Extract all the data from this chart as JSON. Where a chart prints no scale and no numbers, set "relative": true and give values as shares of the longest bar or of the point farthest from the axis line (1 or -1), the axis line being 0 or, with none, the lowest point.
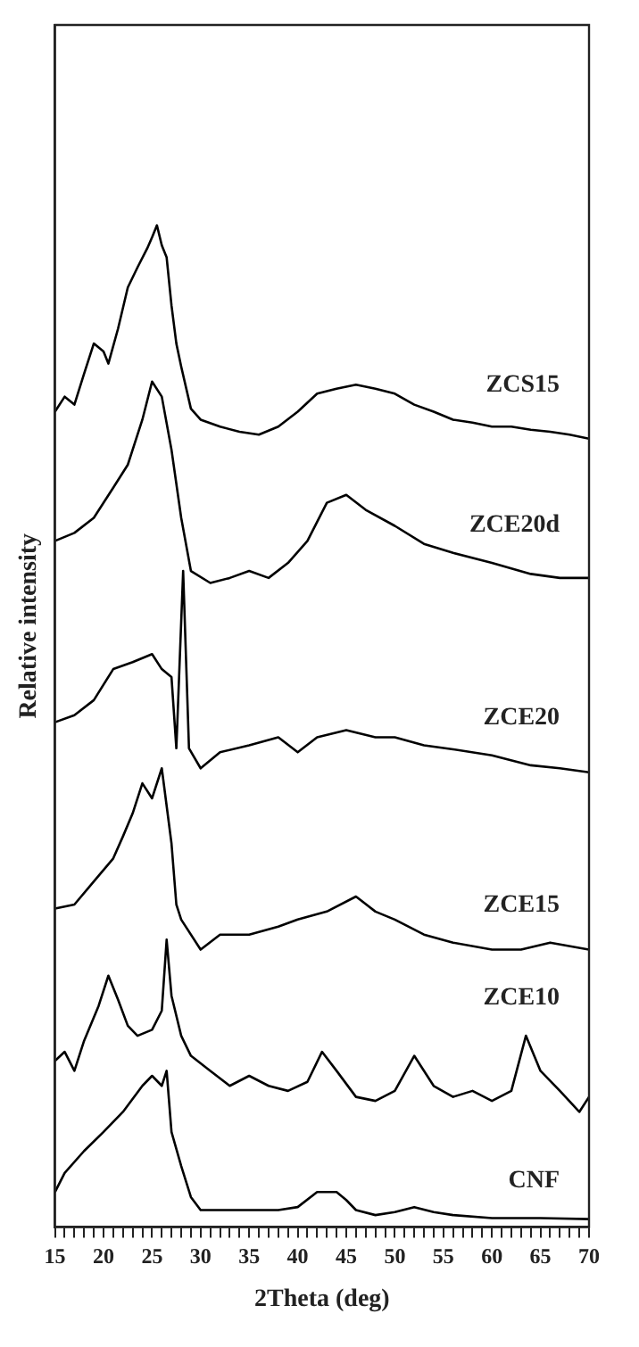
{
  "chart_data": {
    "type": "line",
    "relative": true,
    "xlabel": "2Theta (deg)",
    "ylabel": "Relative intensity",
    "xlim": [
      15,
      70
    ],
    "xticks": [
      15,
      {
        "value": 16,
        "label": null
      },
      {
        "value": 17,
        "label": null
      },
      {
        "value": 18,
        "label": null
      },
      {
        "value": 19,
        "label": null
      },
      20,
      {
        "value": 21,
        "label": null
      },
      {
        "value": 22,
        "label": null
      },
      {
        "value": 23,
        "label": null
      },
      {
        "value": 24,
        "label": null
      },
      25,
      {
        "value": 26,
        "label": null
      },
      {
        "value": 27,
        "label": null
      },
      {
        "value": 28,
        "label": null
      },
      {
        "value": 29,
        "label": null
      },
      30,
      {
        "value": 31,
        "label": null
      },
      {
        "value": 32,
        "label": null
      },
      {
        "value": 33,
        "label": null
      },
      {
        "value": 34,
        "label": null
      },
      35,
      {
        "value": 36,
        "label": null
      },
      {
        "value": 37,
        "label": null
      },
      {
        "value": 38,
        "label": null
      },
      {
        "value": 39,
        "label": null
      },
      40,
      {
        "value": 41,
        "label": null
      },
      {
        "value": 42,
        "label": null
      },
      {
        "value": 43,
        "label": null
      },
      {
        "value": 44,
        "label": null
      },
      45,
      {
        "value": 46,
        "label": null
      },
      {
        "value": 47,
        "label": null
      },
      {
        "value": 48,
        "label": null
      },
      {
        "value": 49,
        "label": null
      },
      50,
      {
        "value": 51,
        "label": null
      },
      {
        "value": 52,
        "label": null
      },
      {
        "value": 53,
        "label": null
      },
      {
        "value": 54,
        "label": null
      },
      55,
      {
        "value": 56,
        "label": null
      },
      {
        "value": 57,
        "label": null
      },
      {
        "value": 58,
        "label": null
      },
      {
        "value": 59,
        "label": null
      },
      60,
      {
        "value": 61,
        "label": null
      },
      {
        "value": 62,
        "label": null
      },
      {
        "value": 63,
        "label": null
      },
      {
        "value": 64,
        "label": null
      },
      65,
      {
        "value": 66,
        "label": null
      },
      {
        "value": 67,
        "label": null
      },
      {
        "value": 68,
        "label": null
      },
      {
        "value": 69,
        "label": null
      },
      70
    ],
    "tick_labels": "x",
    "grid": false,
    "legend": false,
    "marker": "none",
    "line_style": "solid",
    "series": [
      {
        "name": "ZCS15",
        "color": "#000000",
        "x": [
          15,
          16,
          17,
          18,
          19,
          20,
          20.5,
          21.5,
          22.5,
          23.5,
          24.5,
          25,
          25.5,
          26,
          26.5,
          27,
          27.5,
          28,
          29,
          30,
          32,
          34,
          36,
          38,
          40,
          42,
          44,
          46,
          48,
          50,
          52,
          54,
          56,
          58,
          60,
          62,
          64,
          66,
          68,
          70
        ],
        "values": [
          0.814,
          0.829,
          0.821,
          0.852,
          0.882,
          0.874,
          0.862,
          0.897,
          0.938,
          0.958,
          0.977,
          0.988,
          1.0,
          0.98,
          0.968,
          0.92,
          0.882,
          0.859,
          0.817,
          0.806,
          0.799,
          0.794,
          0.791,
          0.799,
          0.814,
          0.832,
          0.837,
          0.841,
          0.837,
          0.832,
          0.821,
          0.814,
          0.806,
          0.803,
          0.799,
          0.799,
          0.796,
          0.794,
          0.791,
          0.787
        ]
      },
      {
        "name": "ZCE20d",
        "color": "#000000",
        "x": [
          15,
          17,
          19,
          21,
          22.5,
          24,
          25,
          26,
          27,
          28,
          29,
          31,
          33,
          35,
          37,
          39,
          41,
          43,
          45,
          47,
          50,
          53,
          56,
          60,
          64,
          67,
          70
        ],
        "values": [
          0.685,
          0.693,
          0.708,
          0.738,
          0.761,
          0.806,
          0.844,
          0.829,
          0.776,
          0.708,
          0.655,
          0.643,
          0.648,
          0.655,
          0.648,
          0.663,
          0.685,
          0.723,
          0.731,
          0.716,
          0.7,
          0.682,
          0.673,
          0.663,
          0.652,
          0.648,
          0.648
        ]
      },
      {
        "name": "ZCE20",
        "color": "#000000",
        "x": [
          15,
          17,
          19,
          21,
          23,
          25,
          26,
          27,
          27.5,
          28.2,
          28.8,
          30,
          32,
          35,
          38,
          40,
          42,
          45,
          48,
          50,
          53,
          56,
          60,
          64,
          67,
          70
        ],
        "values": [
          0.504,
          0.511,
          0.526,
          0.557,
          0.564,
          0.572,
          0.557,
          0.549,
          0.478,
          0.655,
          0.478,
          0.458,
          0.474,
          0.481,
          0.489,
          0.474,
          0.489,
          0.496,
          0.489,
          0.489,
          0.481,
          0.477,
          0.471,
          0.461,
          0.458,
          0.454
        ]
      },
      {
        "name": "ZCE15",
        "color": "#000000",
        "x": [
          15,
          17,
          19,
          21,
          22,
          23,
          24,
          25,
          26,
          27,
          27.5,
          28,
          30,
          32,
          35,
          38,
          40,
          43,
          46,
          48,
          50,
          53,
          56,
          60,
          63,
          66,
          70
        ],
        "values": [
          0.318,
          0.322,
          0.345,
          0.368,
          0.39,
          0.413,
          0.443,
          0.428,
          0.458,
          0.383,
          0.322,
          0.307,
          0.277,
          0.292,
          0.292,
          0.3,
          0.307,
          0.315,
          0.33,
          0.315,
          0.307,
          0.292,
          0.284,
          0.277,
          0.277,
          0.284,
          0.277
        ]
      },
      {
        "name": "ZCE10",
        "color": "#000000",
        "x": [
          15,
          16,
          17,
          18,
          19.5,
          20.5,
          21.5,
          22.5,
          23.5,
          25,
          26,
          26.5,
          27,
          28,
          29,
          31,
          33,
          35,
          37,
          39,
          41,
          42.5,
          44,
          46,
          48,
          50,
          52,
          54,
          56,
          58,
          60,
          62,
          63.5,
          65,
          67,
          69,
          70
        ],
        "values": [
          0.166,
          0.175,
          0.156,
          0.186,
          0.221,
          0.251,
          0.227,
          0.201,
          0.191,
          0.197,
          0.216,
          0.287,
          0.231,
          0.191,
          0.171,
          0.156,
          0.141,
          0.151,
          0.141,
          0.136,
          0.145,
          0.175,
          0.156,
          0.13,
          0.126,
          0.136,
          0.171,
          0.141,
          0.13,
          0.136,
          0.126,
          0.136,
          0.191,
          0.156,
          0.136,
          0.115,
          0.13
        ]
      },
      {
        "name": "CNF",
        "color": "#000000",
        "x": [
          15,
          16,
          18,
          20,
          22,
          24,
          25,
          26,
          26.5,
          27,
          28,
          29,
          30,
          32,
          35,
          38,
          40,
          42,
          44,
          45,
          46,
          48,
          50,
          52,
          54,
          56,
          60,
          65,
          70
        ],
        "values": [
          0.035,
          0.054,
          0.076,
          0.095,
          0.115,
          0.141,
          0.151,
          0.141,
          0.156,
          0.095,
          0.061,
          0.03,
          0.017,
          0.017,
          0.017,
          0.017,
          0.02,
          0.035,
          0.035,
          0.027,
          0.017,
          0.012,
          0.015,
          0.02,
          0.015,
          0.012,
          0.009,
          0.009,
          0.008
        ]
      }
    ]
  }
}
